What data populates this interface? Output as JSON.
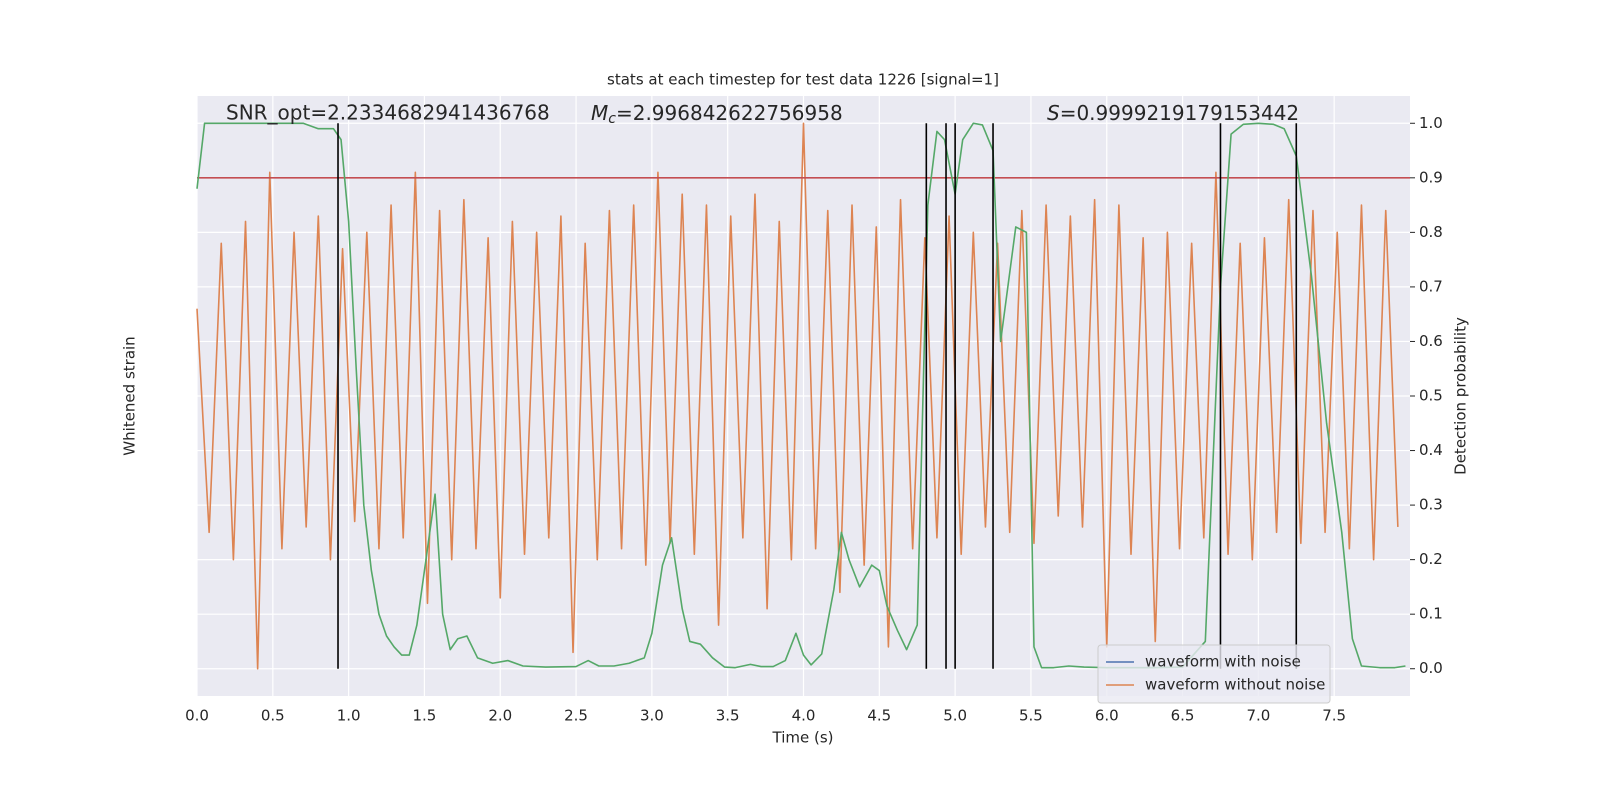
{
  "chart_data": {
    "type": "line",
    "title": "stats at each timestep for test data 1226 [signal=1]",
    "xlabel": "Time (s)",
    "ylabel": "Whitened strain",
    "y2label": "Detection probability",
    "annotations": [
      {
        "text": "SNR_opt=2.2334682941436768"
      },
      {
        "symbol": "M",
        "subscript": "c",
        "text": "=2.996842622756958"
      },
      {
        "symbol": "S",
        "text": "=0.9999219179153442"
      }
    ],
    "xlim": [
      0,
      8
    ],
    "xticks": [
      {
        "value": 0,
        "label": "0.0"
      },
      {
        "value": 0.5,
        "label": "0.5"
      },
      {
        "value": 1,
        "label": "1.0"
      },
      {
        "value": 1.5,
        "label": "1.5"
      },
      {
        "value": 2,
        "label": "2.0"
      },
      {
        "value": 2.5,
        "label": "2.5"
      },
      {
        "value": 3,
        "label": "3.0"
      },
      {
        "value": 3.5,
        "label": "3.5"
      },
      {
        "value": 4,
        "label": "4.0"
      },
      {
        "value": 4.5,
        "label": "4.5"
      },
      {
        "value": 5,
        "label": "5.0"
      },
      {
        "value": 5.5,
        "label": "5.5"
      },
      {
        "value": 6,
        "label": "6.0"
      },
      {
        "value": 6.5,
        "label": "6.5"
      },
      {
        "value": 7,
        "label": "7.0"
      },
      {
        "value": 7.5,
        "label": "7.5"
      }
    ],
    "ylim": [
      -0.05,
      1.05
    ],
    "y2lim": [
      -0.05,
      1.05
    ],
    "y2ticks": [
      {
        "value": 0,
        "label": "0.0"
      },
      {
        "value": 0.1,
        "label": "0.1"
      },
      {
        "value": 0.2,
        "label": "0.2"
      },
      {
        "value": 0.3,
        "label": "0.3"
      },
      {
        "value": 0.4,
        "label": "0.4"
      },
      {
        "value": 0.5,
        "label": "0.5"
      },
      {
        "value": 0.6,
        "label": "0.6"
      },
      {
        "value": 0.7,
        "label": "0.7"
      },
      {
        "value": 0.8,
        "label": "0.8"
      },
      {
        "value": 0.9,
        "label": "0.9"
      },
      {
        "value": 1,
        "label": "1.0"
      }
    ],
    "grid": true,
    "legend": "lower right",
    "series": [
      {
        "name": "waveform with noise",
        "color": "#4c72b0",
        "x": [],
        "values": []
      },
      {
        "name": "waveform without noise",
        "color": "#dd8452",
        "x": [
          0,
          0.08,
          0.16,
          0.24,
          0.32,
          0.4,
          0.48,
          0.56,
          0.64,
          0.72,
          0.8,
          0.88,
          0.96,
          1.04,
          1.12,
          1.2,
          1.28,
          1.36,
          1.44,
          1.52,
          1.6,
          1.68,
          1.76,
          1.84,
          1.92,
          2,
          2.08,
          2.16,
          2.24,
          2.32,
          2.4,
          2.48,
          2.56,
          2.64,
          2.72,
          2.8,
          2.88,
          2.96,
          3.04,
          3.12,
          3.2,
          3.28,
          3.36,
          3.44,
          3.52,
          3.6,
          3.68,
          3.76,
          3.84,
          3.92,
          4,
          4.08,
          4.16,
          4.24,
          4.32,
          4.4,
          4.48,
          4.56,
          4.64,
          4.72,
          4.8,
          4.88,
          4.96,
          5.04,
          5.12,
          5.2,
          5.28,
          5.36,
          5.44,
          5.52,
          5.6,
          5.68,
          5.76,
          5.84,
          5.92,
          6,
          6.08,
          6.16,
          6.24,
          6.32,
          6.4,
          6.48,
          6.56,
          6.64,
          6.72,
          6.8,
          6.88,
          6.96,
          7.04,
          7.12,
          7.2,
          7.28,
          7.36,
          7.44,
          7.52,
          7.6,
          7.68,
          7.76,
          7.84,
          7.92
        ],
        "values": [
          0.66,
          0.25,
          0.78,
          0.2,
          0.82,
          0.0,
          0.91,
          0.22,
          0.8,
          0.26,
          0.83,
          0.2,
          0.77,
          0.27,
          0.8,
          0.22,
          0.85,
          0.24,
          0.91,
          0.12,
          0.84,
          0.2,
          0.86,
          0.22,
          0.79,
          0.13,
          0.82,
          0.21,
          0.8,
          0.24,
          0.83,
          0.03,
          0.78,
          0.2,
          0.84,
          0.22,
          0.85,
          0.19,
          0.91,
          0.23,
          0.87,
          0.21,
          0.85,
          0.08,
          0.83,
          0.24,
          0.87,
          0.11,
          0.82,
          0.2,
          1.0,
          0.22,
          0.84,
          0.14,
          0.85,
          0.19,
          0.81,
          0.04,
          0.86,
          0.22,
          0.79,
          0.24,
          0.83,
          0.21,
          0.8,
          0.26,
          0.78,
          0.25,
          0.84,
          0.23,
          0.85,
          0.28,
          0.83,
          0.26,
          0.86,
          0.04,
          0.85,
          0.21,
          0.79,
          0.05,
          0.8,
          0.22,
          0.78,
          0.24,
          0.91,
          0.21,
          0.78,
          0.2,
          0.79,
          0.25,
          0.86,
          0.23,
          0.84,
          0.25,
          0.8,
          0.22,
          0.85,
          0.2,
          0.84,
          0.26
        ]
      },
      {
        "color": "#55a868",
        "axis": "y2",
        "x": [
          0,
          0.05,
          0.1,
          0.2,
          0.4,
          0.6,
          0.7,
          0.8,
          0.9,
          0.95,
          1.0,
          1.05,
          1.1,
          1.15,
          1.2,
          1.25,
          1.3,
          1.35,
          1.4,
          1.45,
          1.5,
          1.57,
          1.62,
          1.67,
          1.72,
          1.78,
          1.85,
          1.95,
          2.05,
          2.15,
          2.3,
          2.5,
          2.58,
          2.65,
          2.75,
          2.85,
          2.95,
          3.0,
          3.07,
          3.13,
          3.2,
          3.25,
          3.32,
          3.4,
          3.48,
          3.55,
          3.65,
          3.72,
          3.8,
          3.88,
          3.95,
          4.0,
          4.05,
          4.12,
          4.2,
          4.25,
          4.3,
          4.37,
          4.45,
          4.5,
          4.55,
          4.62,
          4.68,
          4.75,
          4.82,
          4.88,
          4.93,
          5.0,
          5.05,
          5.12,
          5.18,
          5.25,
          5.3,
          5.4,
          5.47,
          5.52,
          5.57,
          5.65,
          5.75,
          5.85,
          6.0,
          6.3,
          6.5,
          6.65,
          6.75,
          6.82,
          6.9,
          7.0,
          7.1,
          7.17,
          7.25,
          7.35,
          7.45,
          7.55,
          7.62,
          7.68,
          7.8,
          7.9,
          7.97
        ],
        "values": [
          0.88,
          1.0,
          1.0,
          1.0,
          1.0,
          1.0,
          1.0,
          0.99,
          0.99,
          0.97,
          0.82,
          0.55,
          0.3,
          0.18,
          0.1,
          0.06,
          0.04,
          0.025,
          0.025,
          0.08,
          0.18,
          0.32,
          0.1,
          0.035,
          0.055,
          0.06,
          0.02,
          0.01,
          0.015,
          0.005,
          0.003,
          0.004,
          0.015,
          0.005,
          0.005,
          0.01,
          0.02,
          0.065,
          0.19,
          0.24,
          0.11,
          0.05,
          0.045,
          0.02,
          0.003,
          0.002,
          0.008,
          0.004,
          0.004,
          0.015,
          0.065,
          0.025,
          0.007,
          0.027,
          0.145,
          0.25,
          0.2,
          0.15,
          0.19,
          0.18,
          0.115,
          0.07,
          0.035,
          0.08,
          0.85,
          0.985,
          0.97,
          0.87,
          0.97,
          1.0,
          0.997,
          0.95,
          0.6,
          0.81,
          0.8,
          0.04,
          0.002,
          0.002,
          0.005,
          0.003,
          0.002,
          0.002,
          0.003,
          0.05,
          0.7,
          0.98,
          0.998,
          1.0,
          0.998,
          0.99,
          0.94,
          0.72,
          0.45,
          0.25,
          0.055,
          0.005,
          0.002,
          0.002,
          0.005
        ]
      }
    ],
    "threshold": {
      "value": 0.9,
      "color": "#c44e52"
    },
    "vlines": {
      "x": [
        0.93,
        4.81,
        4.94,
        5.0,
        5.25,
        6.75,
        7.25
      ],
      "ymin": 0,
      "ymax": 1.0,
      "color": "#000000"
    }
  }
}
